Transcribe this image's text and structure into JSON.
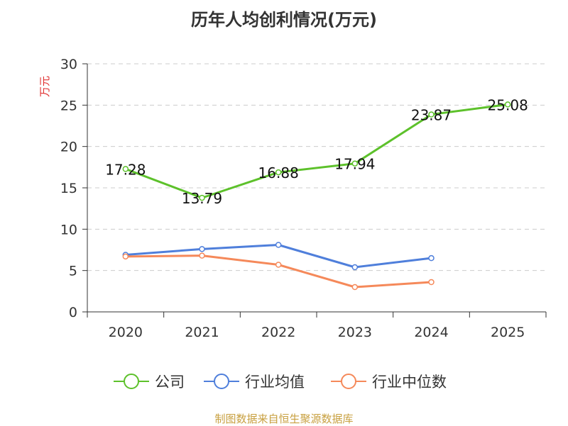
{
  "chart_data": {
    "type": "line",
    "title": "历年人均创利情况(万元)",
    "ylabel": "万元",
    "xlabel": "",
    "categories": [
      "2020",
      "2021",
      "2022",
      "2023",
      "2024",
      "2025"
    ],
    "ylim": [
      0,
      30
    ],
    "yticks": [
      0,
      5,
      10,
      15,
      20,
      25,
      30
    ],
    "grid": true,
    "legend_position": "bottom",
    "series": [
      {
        "name": "公司",
        "color": "#5dc12b",
        "values": [
          17.28,
          13.79,
          16.88,
          17.94,
          23.87,
          25.08
        ],
        "labels": [
          "17.28",
          "13.79",
          "16.88",
          "17.94",
          "23.87",
          "25.08"
        ]
      },
      {
        "name": "行业均值",
        "color": "#4f7fdb",
        "values": [
          6.9,
          7.6,
          8.1,
          5.4,
          6.5,
          null
        ]
      },
      {
        "name": "行业中位数",
        "color": "#f5895a",
        "values": [
          6.7,
          6.8,
          5.7,
          3.0,
          3.6,
          null
        ]
      }
    ]
  },
  "source": "制图数据来自恒生聚源数据库"
}
